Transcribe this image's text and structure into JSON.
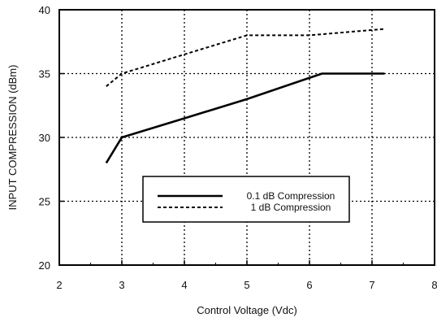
{
  "chart_data": {
    "type": "line",
    "xlabel": "Control Voltage (Vdc)",
    "ylabel": "INPUT COMPRESSION (dBm)",
    "xlim": [
      2,
      8
    ],
    "ylim": [
      20,
      40
    ],
    "xticks": [
      2,
      3,
      4,
      5,
      6,
      7,
      8
    ],
    "yticks": [
      20,
      25,
      30,
      35,
      40
    ],
    "grid": "dotted",
    "legend_position": "center",
    "series": [
      {
        "name": "0.1 dB Compression",
        "style": "solid",
        "color": "#000000",
        "points": [
          [
            2.75,
            28
          ],
          [
            3.0,
            30
          ],
          [
            4.0,
            31.5
          ],
          [
            5.0,
            33
          ],
          [
            6.2,
            35
          ],
          [
            7.2,
            35
          ]
        ]
      },
      {
        "name": "1 dB Compression",
        "style": "dashed",
        "color": "#000000",
        "points": [
          [
            2.75,
            34
          ],
          [
            3.0,
            35
          ],
          [
            4.0,
            36.5
          ],
          [
            5.0,
            38
          ],
          [
            6.0,
            38
          ],
          [
            7.2,
            38.5
          ]
        ]
      }
    ]
  }
}
